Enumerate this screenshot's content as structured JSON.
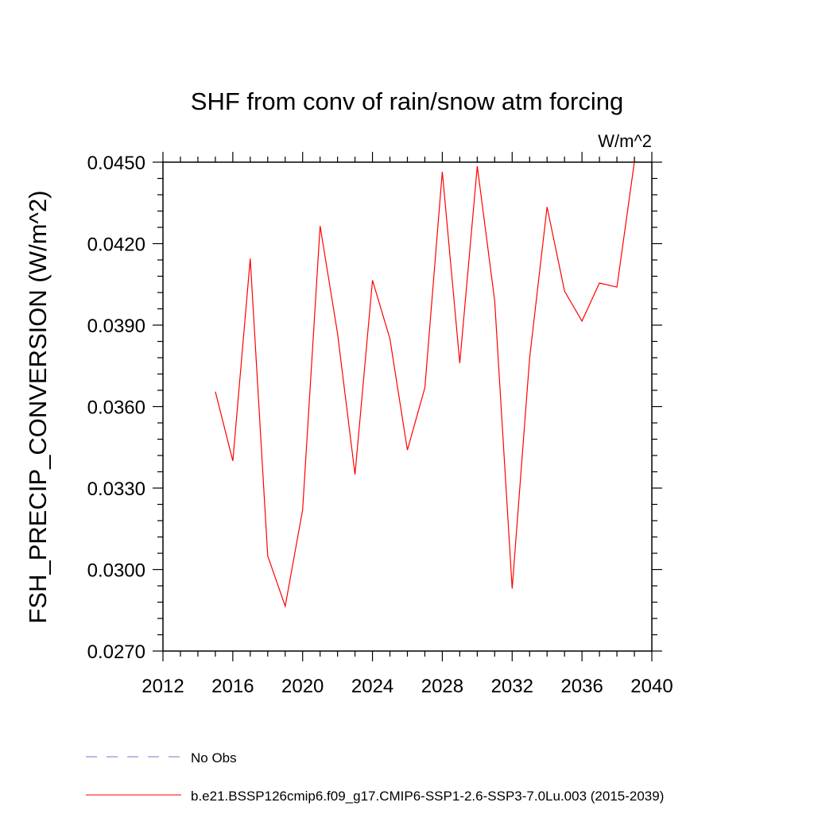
{
  "chart_data": {
    "type": "line",
    "title": "SHF from conv of rain/snow atm forcing",
    "units_label": "W/m^2",
    "ylabel": "FSH_PRECIP_CONVERSION  (W/m^2)",
    "xlabel": "",
    "xlim": [
      2012,
      2040
    ],
    "ylim": [
      0.027,
      0.045
    ],
    "x_ticks": [
      2012,
      2016,
      2020,
      2024,
      2028,
      2032,
      2036,
      2040
    ],
    "x_tick_labels": [
      "2012",
      "2016",
      "2020",
      "2024",
      "2028",
      "2032",
      "2036",
      "2040"
    ],
    "y_ticks": [
      0.027,
      0.03,
      0.033,
      0.036,
      0.039,
      0.042,
      0.045
    ],
    "y_tick_labels": [
      "0.0270",
      "0.0300",
      "0.0330",
      "0.0360",
      "0.0390",
      "0.0420",
      "0.0450"
    ],
    "grid": false,
    "series": [
      {
        "name": "b.e21.BSSP126cmip6.f09_g17.CMIP6-SSP1-2.6-SSP3-7.0Lu.003 (2015-2039)",
        "color": "#ff0000",
        "style": "solid",
        "x": [
          2015,
          2016,
          2017,
          2018,
          2019,
          2020,
          2021,
          2022,
          2023,
          2024,
          2025,
          2026,
          2027,
          2028,
          2029,
          2030,
          2031,
          2032,
          2033,
          2034,
          2035,
          2036,
          2037,
          2038,
          2039
        ],
        "values": [
          0.03655,
          0.034,
          0.04145,
          0.0305,
          0.02865,
          0.0322,
          0.04265,
          0.0387,
          0.0335,
          0.04065,
          0.0385,
          0.0344,
          0.0367,
          0.04465,
          0.0376,
          0.04485,
          0.0399,
          0.0293,
          0.0378,
          0.04335,
          0.04025,
          0.03915,
          0.04055,
          0.0404,
          0.045
        ]
      }
    ],
    "legend": {
      "placement": "bottom",
      "entries": [
        {
          "label": "No Obs",
          "color": "#7777cc",
          "style": "dashed"
        },
        {
          "label": "b.e21.BSSP126cmip6.f09_g17.CMIP6-SSP1-2.6-SSP3-7.0Lu.003 (2015-2039)",
          "color": "#ff0000",
          "style": "solid"
        }
      ]
    }
  }
}
